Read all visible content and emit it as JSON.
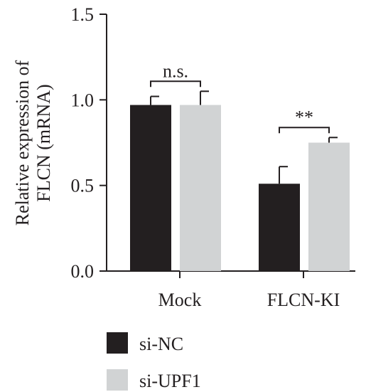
{
  "chart_data": {
    "type": "bar",
    "title": "",
    "xlabel": "",
    "ylabel": "Relative expression of FLCN (mRNA)",
    "ylabel_lines": [
      "Relative expression of",
      "FLCN (mRNA)"
    ],
    "ylim": [
      0,
      1.5
    ],
    "yticks": [
      0.0,
      0.5,
      1.0,
      1.5
    ],
    "ytick_labels": [
      "0.0",
      "0.5",
      "1.0",
      "1.5"
    ],
    "categories": [
      "Mock",
      "FLCN-KI"
    ],
    "series": [
      {
        "name": "si-NC",
        "color": "#231f20",
        "values": [
          0.97,
          0.51
        ],
        "errors": [
          0.05,
          0.1
        ]
      },
      {
        "name": "si-UPF1",
        "color": "#d1d3d4",
        "values": [
          0.97,
          0.75
        ],
        "errors": [
          0.08,
          0.03
        ]
      }
    ],
    "significance": [
      {
        "category_index": 0,
        "label": "n.s."
      },
      {
        "category_index": 1,
        "label": "**"
      }
    ],
    "grid": false,
    "legend_position": "bottom-left"
  }
}
